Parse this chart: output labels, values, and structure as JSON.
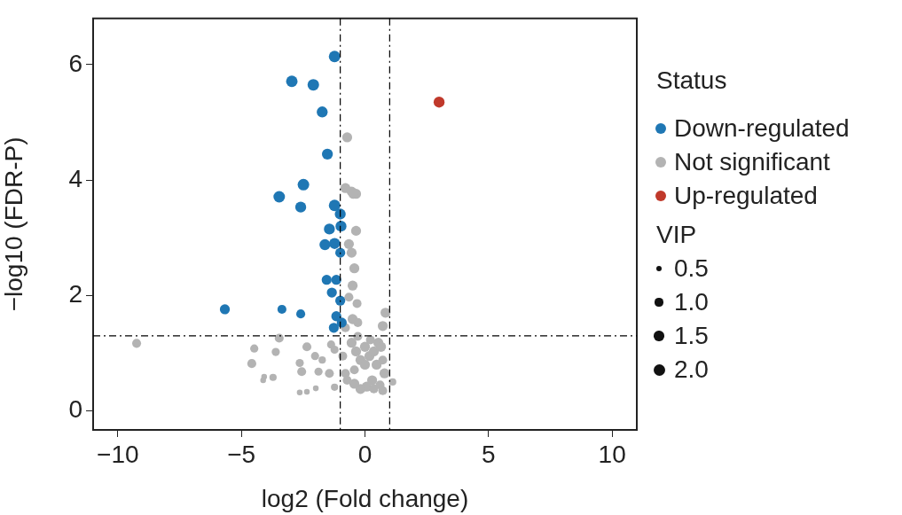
{
  "chart_data": {
    "type": "bubble",
    "xlabel": "log2 (Fold change)",
    "ylabel": "−log10 (FDR-P)",
    "legend_title": "Status",
    "annotations": [
      "VIP"
    ],
    "xlim": [
      -11,
      11
    ],
    "ylim": [
      -0.33,
      6.8
    ],
    "xticks": [
      {
        "value": -10,
        "label": "−10"
      },
      {
        "value": -5,
        "label": "−5"
      },
      0,
      5,
      10
    ],
    "yticks": [
      0,
      2,
      4,
      6
    ],
    "grid": false,
    "legend": "right",
    "marker": "circle",
    "size_legend": [
      0.5,
      {
        "value": 1,
        "label": "1.0"
      },
      1.5,
      {
        "value": 2,
        "label": "2.0"
      }
    ],
    "ref_lines": [
      {
        "axis": "x",
        "value": -1,
        "line_style": "dashed",
        "color": "#000000"
      },
      {
        "axis": "x",
        "value": 1,
        "line_style": "dashed",
        "color": "#000000"
      },
      {
        "axis": "y",
        "value": 1.3,
        "line_style": "dashed",
        "color": "#000000"
      }
    ],
    "series": [
      {
        "name": "Down-regulated",
        "color": "#1f77b4",
        "x": [
          -1.23,
          -2.96,
          -2.09,
          -1.73,
          -1.52,
          -2.49,
          -3.47,
          -2.6,
          -1.23,
          -1.0,
          -0.97,
          -1.44,
          -1.62,
          -1.23,
          -1.0,
          -1.55,
          -1.16,
          -1.34,
          -1.0,
          -5.67,
          -3.36,
          -2.6,
          -1.16,
          -0.94,
          -1.26
        ],
        "values": [
          6.14,
          5.71,
          5.65,
          5.18,
          4.45,
          3.92,
          3.71,
          3.53,
          3.56,
          3.41,
          3.2,
          3.15,
          2.88,
          2.9,
          2.74,
          2.27,
          2.27,
          2.05,
          1.91,
          1.76,
          1.76,
          1.68,
          1.64,
          1.53,
          1.44
        ],
        "sizes": [
          2.0,
          2.0,
          2.0,
          1.8,
          1.8,
          2.0,
          2.0,
          1.8,
          2.0,
          1.8,
          1.8,
          1.8,
          1.8,
          1.8,
          1.5,
          1.5,
          1.5,
          1.5,
          1.5,
          1.5,
          1.2,
          1.2,
          1.5,
          1.5,
          1.5
        ]
      },
      {
        "name": "Not significant",
        "color": "#b3b3b3",
        "x": [
          -0.72,
          -0.79,
          -0.54,
          -0.36,
          -0.47,
          -0.36,
          -0.65,
          -0.54,
          -0.43,
          -0.5,
          -0.65,
          -0.32,
          -0.5,
          -0.29,
          0.83,
          0.72,
          -0.79,
          -9.24,
          -3.47,
          -4.48,
          -4.58,
          -3.61,
          -4.08,
          -3.72,
          -4.12,
          -2.64,
          -2.35,
          -2.56,
          -2.02,
          -1.88,
          -1.73,
          -1.99,
          -2.64,
          -2.35,
          -1.37,
          -1.23,
          -1.44,
          -1.23,
          -0.9,
          -0.79,
          -0.54,
          -0.36,
          -0.18,
          0.0,
          0.18,
          0.36,
          0.54,
          0.65,
          0.47,
          0.29,
          0.07,
          -0.18,
          -0.43,
          -0.72,
          0.36,
          0.61,
          0.79,
          0.72,
          0.72,
          1.12,
          -0.43,
          0.0,
          -0.29,
          0.22
        ],
        "values": [
          4.74,
          3.86,
          3.8,
          3.76,
          3.76,
          3.12,
          2.89,
          2.74,
          2.47,
          2.17,
          1.97,
          1.86,
          1.59,
          1.53,
          1.7,
          1.47,
          1.44,
          1.17,
          1.26,
          1.08,
          0.82,
          1.02,
          0.59,
          0.58,
          0.53,
          0.83,
          1.11,
          0.68,
          0.95,
          0.68,
          0.88,
          0.39,
          0.32,
          0.33,
          1.15,
          1.06,
          0.65,
          0.41,
          0.95,
          0.65,
          1.18,
          1.03,
          0.88,
          0.8,
          0.95,
          1.03,
          1.18,
          1.11,
          0.8,
          0.53,
          0.42,
          0.38,
          0.47,
          0.53,
          0.38,
          0.45,
          0.65,
          0.88,
          0.35,
          0.5,
          0.71,
          1.11,
          1.29,
          1.23
        ],
        "sizes": [
          1.5,
          1.5,
          1.5,
          1.5,
          1.5,
          1.5,
          1.5,
          1.5,
          1.5,
          1.5,
          1.2,
          1.2,
          1.5,
          1.2,
          1.5,
          1.5,
          1.2,
          1.2,
          1.2,
          1.0,
          1.2,
          1.0,
          0.5,
          0.8,
          0.5,
          1.0,
          1.2,
          1.2,
          1.0,
          1.0,
          0.8,
          0.5,
          0.5,
          0.5,
          1.0,
          1.0,
          1.2,
          0.8,
          1.2,
          1.2,
          1.5,
          1.5,
          1.5,
          1.5,
          1.5,
          1.5,
          1.5,
          1.5,
          1.5,
          1.5,
          1.5,
          1.5,
          1.5,
          1.2,
          1.2,
          1.2,
          1.5,
          1.2,
          1.2,
          0.8,
          1.2,
          1.5,
          1.2,
          1.2
        ]
      },
      {
        "name": "Up-regulated",
        "color": "#c0392b",
        "x": [
          3.0
        ],
        "values": [
          5.35
        ],
        "sizes": [
          1.8
        ]
      }
    ]
  }
}
